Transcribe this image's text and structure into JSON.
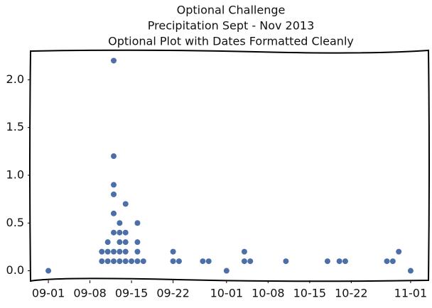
{
  "chart_data": {
    "type": "scatter",
    "title": [
      "Optional Challenge",
      "Precipitation Sept - Nov 2013",
      "Optional Plot with Dates Formatted Cleanly"
    ],
    "x": [
      "09-01",
      "09-10",
      "09-10",
      "09-11",
      "09-11",
      "09-11",
      "09-12",
      "09-12",
      "09-12",
      "09-12",
      "09-12",
      "09-12",
      "09-12",
      "09-12",
      "09-13",
      "09-13",
      "09-13",
      "09-13",
      "09-13",
      "09-14",
      "09-14",
      "09-14",
      "09-14",
      "09-14",
      "09-15",
      "09-16",
      "09-16",
      "09-16",
      "09-16",
      "09-17",
      "09-22",
      "09-22",
      "09-23",
      "09-27",
      "09-28",
      "10-01",
      "10-04",
      "10-04",
      "10-05",
      "10-11",
      "10-18",
      "10-20",
      "10-21",
      "10-28",
      "10-29",
      "10-30",
      "11-01"
    ],
    "values": [
      0.0,
      0.1,
      0.2,
      0.1,
      0.2,
      0.3,
      0.1,
      0.2,
      0.4,
      0.6,
      0.8,
      0.9,
      1.2,
      2.2,
      0.1,
      0.2,
      0.3,
      0.4,
      0.5,
      0.1,
      0.2,
      0.3,
      0.4,
      0.7,
      0.1,
      0.1,
      0.2,
      0.3,
      0.5,
      0.1,
      0.1,
      0.2,
      0.1,
      0.1,
      0.1,
      0.0,
      0.1,
      0.2,
      0.1,
      0.1,
      0.1,
      0.1,
      0.1,
      0.1,
      0.1,
      0.2,
      0.0
    ],
    "color": "#4c6fa8",
    "xlim": [
      "08-29",
      "11-04"
    ],
    "xticks": [
      "09-01",
      "09-08",
      "09-15",
      "09-22",
      "10-01",
      "10-08",
      "10-15",
      "10-22",
      "11-01"
    ],
    "ylim": [
      -0.1,
      2.3
    ],
    "yticks": [
      {
        "value": 0,
        "label": "0.0"
      },
      0.5,
      {
        "value": 1,
        "label": "1.0"
      },
      1.5,
      {
        "value": 2,
        "label": "2.0"
      }
    ],
    "grid": false
  }
}
